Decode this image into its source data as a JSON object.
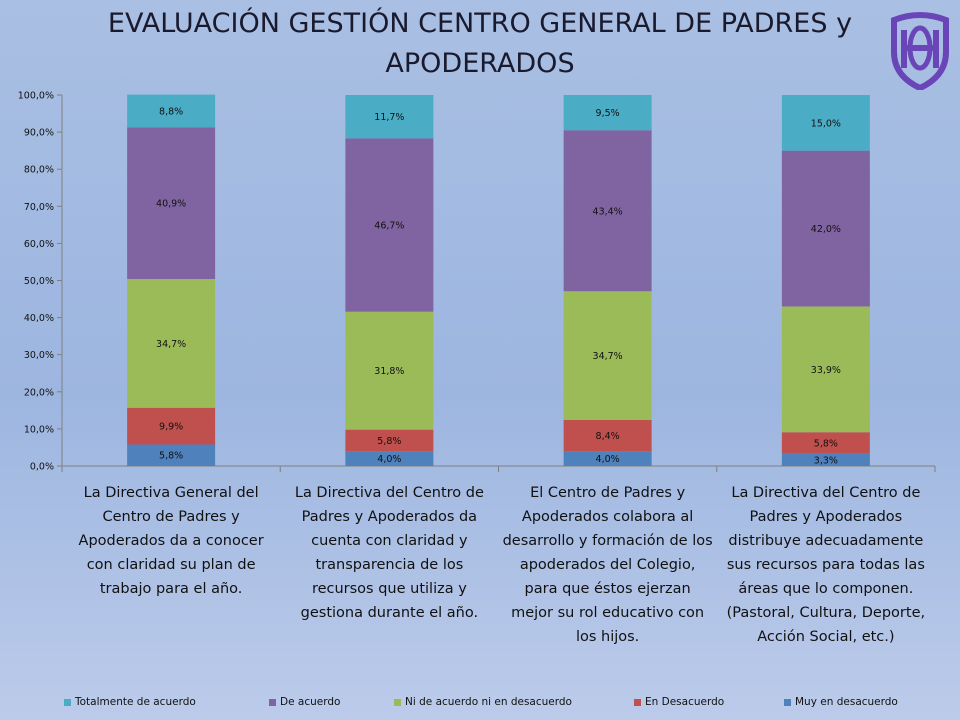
{
  "title": {
    "line1": "EVALUACIÓN GESTIÓN CENTRO GENERAL DE PADRES y",
    "line2": "APODERADOS"
  },
  "logo": {
    "icon": "school-crest-logo",
    "color": "#6a45b8"
  },
  "colors": {
    "Totalmente de acuerdo": "#4bacc6",
    "De acuerdo": "#8064a2",
    "Ni de acuerdo ni en desacuerdo": "#9bbb59",
    "En Desacuerdo": "#c0504d",
    "Muy en desacuerdo": "#4f81bd"
  },
  "chart_data": {
    "type": "bar",
    "stacked": true,
    "ylim": [
      0,
      100
    ],
    "yticks": [
      "0,0%",
      "10,0%",
      "20,0%",
      "30,0%",
      "40,0%",
      "50,0%",
      "60,0%",
      "70,0%",
      "80,0%",
      "90,0%",
      "100,0%"
    ],
    "grid": false,
    "legend": "bottom",
    "categories": [
      "La Directiva General del Centro de Padres y Apoderados da a conocer con claridad su plan de trabajo para el año.",
      "La Directiva del Centro de Padres y Apoderados da cuenta con claridad y transparencia de los recursos que utiliza y gestiona durante el año.",
      "El Centro de Padres y Apoderados colabora al desarrollo y formación de los apoderados del Colegio, para que éstos ejerzan mejor su rol educativo con los hijos.",
      "La Directiva del Centro de Padres y Apoderados distribuye adecuadamente sus recursos para todas las áreas que lo componen. (Pastoral, Cultura, Deporte, Acción Social, etc.)"
    ],
    "series": [
      {
        "name": "Muy en desacuerdo",
        "values": [
          5.8,
          4.0,
          4.0,
          3.3
        ],
        "labels": [
          "5,8%",
          "4,0%",
          "4,0%",
          "3,3%"
        ]
      },
      {
        "name": "En Desacuerdo",
        "values": [
          9.9,
          5.8,
          8.4,
          5.8
        ],
        "labels": [
          "9,9%",
          "5,8%",
          "8,4%",
          "5,8%"
        ]
      },
      {
        "name": "Ni de acuerdo ni en desacuerdo",
        "values": [
          34.7,
          31.8,
          34.7,
          33.9
        ],
        "labels": [
          "34,7%",
          "31,8%",
          "34,7%",
          "33,9%"
        ]
      },
      {
        "name": "De acuerdo",
        "values": [
          40.9,
          46.7,
          43.4,
          42.0
        ],
        "labels": [
          "40,9%",
          "46,7%",
          "43,4%",
          "42,0%"
        ]
      },
      {
        "name": "Totalmente de acuerdo",
        "values": [
          8.8,
          11.7,
          9.5,
          15.0
        ],
        "labels": [
          "8,8%",
          "11,7%",
          "9,5%",
          "15,0%"
        ]
      }
    ],
    "legend_order": [
      "Totalmente de acuerdo",
      "De acuerdo",
      "Ni de acuerdo ni en desacuerdo",
      "En Desacuerdo",
      "Muy en desacuerdo"
    ]
  }
}
